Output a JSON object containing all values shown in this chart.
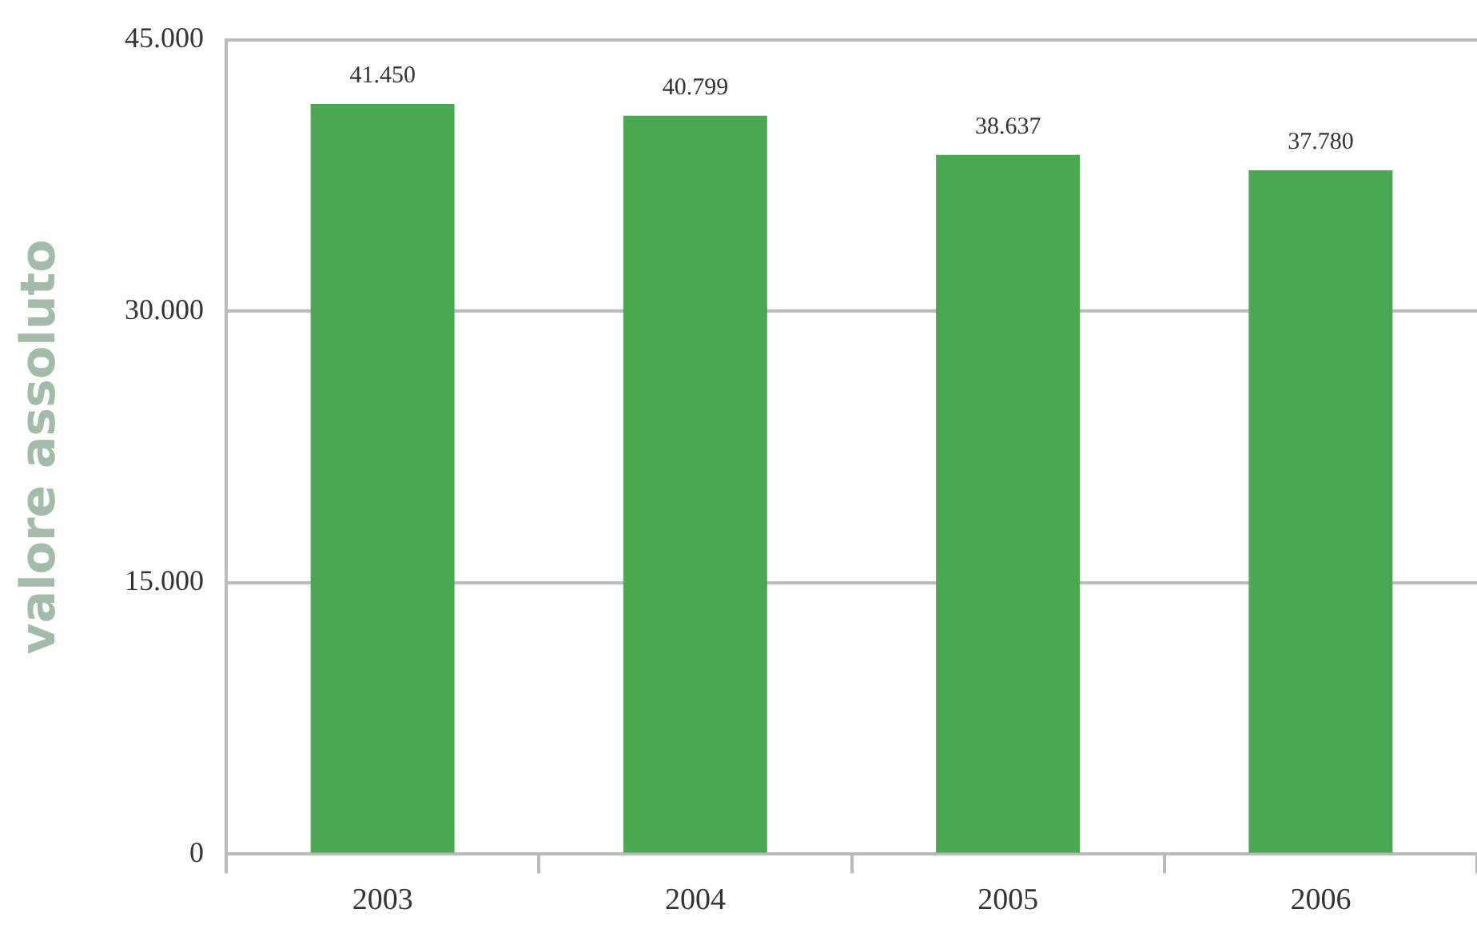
{
  "chart_data": {
    "type": "bar",
    "ylabel": "valore assoluto",
    "categories": [
      "2003",
      "2004",
      "2005",
      "2006"
    ],
    "values": [
      41450,
      40799,
      38637,
      37780
    ],
    "value_labels": [
      "41.450",
      "40.799",
      "38.637",
      "37.780"
    ],
    "color": "#4aa852",
    "ylim": [
      0,
      45000
    ],
    "yticks": [
      {
        "value": 0,
        "label": "0"
      },
      {
        "value": 15000,
        "label": "15.000"
      },
      {
        "value": 30000,
        "label": "30.000"
      },
      {
        "value": 45000,
        "label": "45.000"
      }
    ],
    "grid": "y",
    "legend": false
  }
}
